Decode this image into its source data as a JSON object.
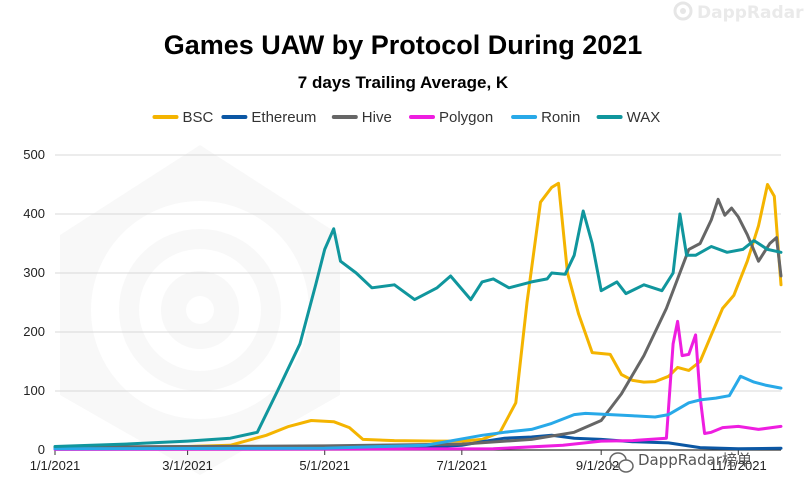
{
  "watermark": {
    "brand_top": "DappRadar",
    "brand_bottom": "DappRadar榜单",
    "logo_icon": "dappradar-logo-icon",
    "wechat_icon": "wechat-icon"
  },
  "chart_data": {
    "type": "line",
    "title": "Games UAW by Protocol During 2021",
    "subtitle": "7 days Trailing Average, K",
    "xlabel": "",
    "ylabel": "",
    "x_range": [
      "2021-01-01",
      "2021-11-20"
    ],
    "x_ticks": [
      "1/1/2021",
      "3/1/2021",
      "5/1/2021",
      "7/1/2021",
      "9/1/2021",
      "11/1/2021"
    ],
    "ylim": [
      0,
      500
    ],
    "y_ticks": [
      0,
      100,
      200,
      300,
      400,
      500
    ],
    "grid": "horizontal",
    "legend_position": "top",
    "series": [
      {
        "name": "BSC",
        "color": "#F4B400",
        "points": [
          [
            "2021-01-01",
            3
          ],
          [
            "2021-02-01",
            4
          ],
          [
            "2021-03-01",
            6
          ],
          [
            "2021-03-20",
            8
          ],
          [
            "2021-04-05",
            25
          ],
          [
            "2021-04-15",
            40
          ],
          [
            "2021-04-25",
            50
          ],
          [
            "2021-05-05",
            48
          ],
          [
            "2021-05-12",
            38
          ],
          [
            "2021-05-18",
            18
          ],
          [
            "2021-06-01",
            16
          ],
          [
            "2021-06-20",
            15
          ],
          [
            "2021-07-01",
            15
          ],
          [
            "2021-07-10",
            18
          ],
          [
            "2021-07-18",
            30
          ],
          [
            "2021-07-25",
            80
          ],
          [
            "2021-07-30",
            250
          ],
          [
            "2021-08-05",
            420
          ],
          [
            "2021-08-10",
            445
          ],
          [
            "2021-08-13",
            452
          ],
          [
            "2021-08-17",
            300
          ],
          [
            "2021-08-22",
            230
          ],
          [
            "2021-08-28",
            165
          ],
          [
            "2021-09-05",
            162
          ],
          [
            "2021-09-10",
            128
          ],
          [
            "2021-09-15",
            118
          ],
          [
            "2021-09-20",
            115
          ],
          [
            "2021-09-25",
            116
          ],
          [
            "2021-10-01",
            125
          ],
          [
            "2021-10-05",
            140
          ],
          [
            "2021-10-10",
            135
          ],
          [
            "2021-10-15",
            150
          ],
          [
            "2021-10-20",
            195
          ],
          [
            "2021-10-25",
            240
          ],
          [
            "2021-10-30",
            262
          ],
          [
            "2021-11-05",
            320
          ],
          [
            "2021-11-10",
            380
          ],
          [
            "2021-11-14",
            450
          ],
          [
            "2021-11-17",
            430
          ],
          [
            "2021-11-20",
            280
          ]
        ]
      },
      {
        "name": "Ethereum",
        "color": "#0B57A4",
        "points": [
          [
            "2021-01-01",
            2
          ],
          [
            "2021-03-01",
            3
          ],
          [
            "2021-05-01",
            4
          ],
          [
            "2021-06-15",
            5
          ],
          [
            "2021-07-01",
            8
          ],
          [
            "2021-07-10",
            14
          ],
          [
            "2021-07-20",
            20
          ],
          [
            "2021-08-01",
            22
          ],
          [
            "2021-08-10",
            25
          ],
          [
            "2021-08-20",
            20
          ],
          [
            "2021-09-01",
            18
          ],
          [
            "2021-09-15",
            14
          ],
          [
            "2021-10-01",
            12
          ],
          [
            "2021-10-15",
            4
          ],
          [
            "2021-11-01",
            2
          ],
          [
            "2021-11-20",
            3
          ]
        ]
      },
      {
        "name": "Hive",
        "color": "#666666",
        "points": [
          [
            "2021-01-01",
            5
          ],
          [
            "2021-05-01",
            7
          ],
          [
            "2021-07-01",
            10
          ],
          [
            "2021-08-01",
            18
          ],
          [
            "2021-08-20",
            30
          ],
          [
            "2021-09-01",
            50
          ],
          [
            "2021-09-10",
            95
          ],
          [
            "2021-09-20",
            160
          ],
          [
            "2021-09-30",
            240
          ],
          [
            "2021-10-10",
            340
          ],
          [
            "2021-10-15",
            350
          ],
          [
            "2021-10-20",
            390
          ],
          [
            "2021-10-23",
            425
          ],
          [
            "2021-10-26",
            398
          ],
          [
            "2021-10-29",
            410
          ],
          [
            "2021-11-01",
            395
          ],
          [
            "2021-11-05",
            365
          ],
          [
            "2021-11-10",
            320
          ],
          [
            "2021-11-15",
            350
          ],
          [
            "2021-11-18",
            360
          ],
          [
            "2021-11-20",
            295
          ]
        ]
      },
      {
        "name": "Polygon",
        "color": "#EE1EE0",
        "points": [
          [
            "2021-01-01",
            1
          ],
          [
            "2021-07-15",
            2
          ],
          [
            "2021-08-15",
            8
          ],
          [
            "2021-09-01",
            15
          ],
          [
            "2021-09-15",
            16
          ],
          [
            "2021-09-30",
            20
          ],
          [
            "2021-10-03",
            180
          ],
          [
            "2021-10-05",
            218
          ],
          [
            "2021-10-07",
            160
          ],
          [
            "2021-10-10",
            162
          ],
          [
            "2021-10-13",
            195
          ],
          [
            "2021-10-15",
            90
          ],
          [
            "2021-10-17",
            28
          ],
          [
            "2021-10-20",
            30
          ],
          [
            "2021-10-25",
            38
          ],
          [
            "2021-11-01",
            40
          ],
          [
            "2021-11-10",
            35
          ],
          [
            "2021-11-20",
            40
          ]
        ]
      },
      {
        "name": "Ronin",
        "color": "#28A9E8",
        "points": [
          [
            "2021-01-01",
            2
          ],
          [
            "2021-05-01",
            3
          ],
          [
            "2021-06-15",
            8
          ],
          [
            "2021-07-10",
            25
          ],
          [
            "2021-07-20",
            30
          ],
          [
            "2021-08-01",
            35
          ],
          [
            "2021-08-10",
            45
          ],
          [
            "2021-08-20",
            60
          ],
          [
            "2021-08-25",
            62
          ],
          [
            "2021-09-15",
            58
          ],
          [
            "2021-09-25",
            56
          ],
          [
            "2021-10-01",
            60
          ],
          [
            "2021-10-10",
            80
          ],
          [
            "2021-10-15",
            85
          ],
          [
            "2021-10-22",
            88
          ],
          [
            "2021-10-28",
            92
          ],
          [
            "2021-11-02",
            125
          ],
          [
            "2021-11-08",
            115
          ],
          [
            "2021-11-13",
            110
          ],
          [
            "2021-11-20",
            105
          ]
        ]
      },
      {
        "name": "WAX",
        "color": "#10969D",
        "points": [
          [
            "2021-01-01",
            6
          ],
          [
            "2021-02-01",
            10
          ],
          [
            "2021-03-01",
            15
          ],
          [
            "2021-03-20",
            20
          ],
          [
            "2021-04-01",
            30
          ],
          [
            "2021-04-10",
            100
          ],
          [
            "2021-04-20",
            180
          ],
          [
            "2021-04-27",
            280
          ],
          [
            "2021-05-01",
            340
          ],
          [
            "2021-05-05",
            375
          ],
          [
            "2021-05-08",
            320
          ],
          [
            "2021-05-15",
            300
          ],
          [
            "2021-05-22",
            275
          ],
          [
            "2021-06-01",
            280
          ],
          [
            "2021-06-10",
            255
          ],
          [
            "2021-06-20",
            275
          ],
          [
            "2021-06-26",
            295
          ],
          [
            "2021-07-05",
            255
          ],
          [
            "2021-07-10",
            285
          ],
          [
            "2021-07-15",
            290
          ],
          [
            "2021-07-22",
            275
          ],
          [
            "2021-08-01",
            285
          ],
          [
            "2021-08-08",
            290
          ],
          [
            "2021-08-10",
            300
          ],
          [
            "2021-08-16",
            298
          ],
          [
            "2021-08-20",
            330
          ],
          [
            "2021-08-24",
            405
          ],
          [
            "2021-08-28",
            350
          ],
          [
            "2021-09-01",
            270
          ],
          [
            "2021-09-08",
            285
          ],
          [
            "2021-09-12",
            265
          ],
          [
            "2021-09-20",
            280
          ],
          [
            "2021-09-28",
            270
          ],
          [
            "2021-10-03",
            300
          ],
          [
            "2021-10-06",
            400
          ],
          [
            "2021-10-09",
            330
          ],
          [
            "2021-10-13",
            330
          ],
          [
            "2021-10-20",
            345
          ],
          [
            "2021-10-27",
            335
          ],
          [
            "2021-11-03",
            340
          ],
          [
            "2021-11-08",
            355
          ],
          [
            "2021-11-14",
            340
          ],
          [
            "2021-11-20",
            335
          ]
        ]
      }
    ]
  }
}
